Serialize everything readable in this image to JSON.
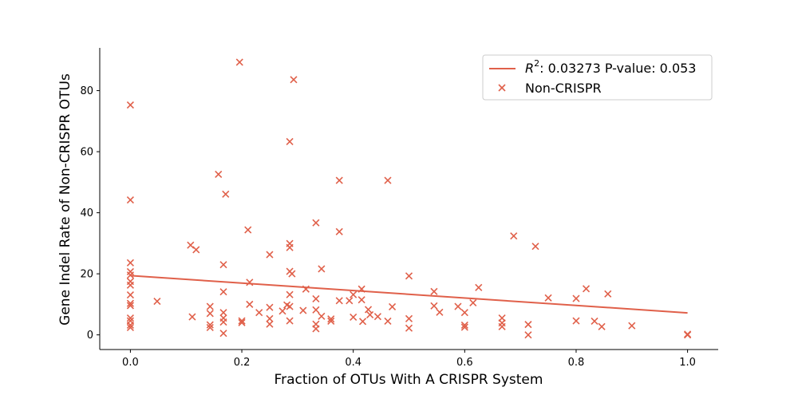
{
  "chart_data": {
    "type": "scatter",
    "title": "",
    "xlabel": "Fraction of OTUs With A CRISPR System",
    "ylabel": "Gene Indel Rate of Non-CRISPR OTUs",
    "xlim": [
      -0.055,
      1.055
    ],
    "ylim": [
      -4.8,
      94.0
    ],
    "xticks": [
      0.0,
      0.2,
      0.4,
      0.6,
      0.8,
      1.0
    ],
    "xtick_labels": [
      "0.0",
      "0.2",
      "0.4",
      "0.6",
      "0.8",
      "1.0"
    ],
    "yticks": [
      0,
      20,
      40,
      60,
      80
    ],
    "ytick_labels": [
      "0",
      "20",
      "40",
      "60",
      "80"
    ],
    "grid": false,
    "legend_position": "top-right",
    "colors": {
      "series": "#e0604a"
    },
    "fit_line": {
      "label_prefix": "R",
      "label_sup": "2",
      "label_rest": ": 0.03273 P-value: 0.053",
      "x": [
        0.0,
        1.0
      ],
      "y": [
        19.4,
        7.2
      ]
    },
    "series": [
      {
        "name": "Non-CRISPR",
        "marker": "x",
        "points": [
          [
            0.0,
            75.3
          ],
          [
            0.0,
            44.2
          ],
          [
            0.0,
            23.6
          ],
          [
            0.0,
            20.7
          ],
          [
            0.0,
            19.6
          ],
          [
            0.0,
            17.5
          ],
          [
            0.0,
            16.3
          ],
          [
            0.0,
            13.1
          ],
          [
            0.0,
            10.3
          ],
          [
            0.0,
            9.6
          ],
          [
            0.0,
            5.5
          ],
          [
            0.0,
            4.6
          ],
          [
            0.0,
            3.2
          ],
          [
            0.0,
            2.4
          ],
          [
            0.048,
            11.0
          ],
          [
            0.108,
            29.4
          ],
          [
            0.111,
            5.9
          ],
          [
            0.118,
            27.9
          ],
          [
            0.143,
            9.3
          ],
          [
            0.143,
            7.0
          ],
          [
            0.143,
            3.3
          ],
          [
            0.143,
            2.4
          ],
          [
            0.158,
            52.6
          ],
          [
            0.167,
            23.0
          ],
          [
            0.167,
            14.1
          ],
          [
            0.167,
            7.3
          ],
          [
            0.167,
            5.5
          ],
          [
            0.167,
            4.2
          ],
          [
            0.167,
            0.5
          ],
          [
            0.171,
            46.1
          ],
          [
            0.196,
            89.3
          ],
          [
            0.2,
            4.6
          ],
          [
            0.2,
            4.0
          ],
          [
            0.211,
            34.4
          ],
          [
            0.214,
            17.2
          ],
          [
            0.214,
            10.0
          ],
          [
            0.231,
            7.3
          ],
          [
            0.25,
            26.3
          ],
          [
            0.25,
            9.0
          ],
          [
            0.25,
            5.3
          ],
          [
            0.25,
            3.5
          ],
          [
            0.273,
            7.8
          ],
          [
            0.281,
            9.8
          ],
          [
            0.286,
            63.3
          ],
          [
            0.286,
            29.9
          ],
          [
            0.286,
            28.6
          ],
          [
            0.286,
            20.8
          ],
          [
            0.286,
            13.2
          ],
          [
            0.286,
            9.3
          ],
          [
            0.286,
            4.6
          ],
          [
            0.29,
            20.0
          ],
          [
            0.293,
            83.6
          ],
          [
            0.31,
            8.0
          ],
          [
            0.315,
            15.0
          ],
          [
            0.333,
            36.7
          ],
          [
            0.333,
            11.8
          ],
          [
            0.333,
            8.2
          ],
          [
            0.333,
            3.5
          ],
          [
            0.333,
            2.0
          ],
          [
            0.343,
            21.6
          ],
          [
            0.343,
            6.1
          ],
          [
            0.36,
            5.2
          ],
          [
            0.36,
            4.5
          ],
          [
            0.375,
            50.6
          ],
          [
            0.375,
            33.8
          ],
          [
            0.375,
            11.2
          ],
          [
            0.393,
            11.2
          ],
          [
            0.4,
            13.2
          ],
          [
            0.4,
            5.8
          ],
          [
            0.415,
            15.0
          ],
          [
            0.415,
            11.5
          ],
          [
            0.417,
            4.4
          ],
          [
            0.427,
            8.3
          ],
          [
            0.43,
            6.6
          ],
          [
            0.444,
            6.0
          ],
          [
            0.462,
            50.6
          ],
          [
            0.462,
            4.5
          ],
          [
            0.47,
            9.2
          ],
          [
            0.5,
            19.3
          ],
          [
            0.5,
            5.3
          ],
          [
            0.5,
            2.2
          ],
          [
            0.545,
            14.2
          ],
          [
            0.545,
            9.5
          ],
          [
            0.555,
            7.4
          ],
          [
            0.588,
            9.3
          ],
          [
            0.6,
            7.3
          ],
          [
            0.6,
            3.2
          ],
          [
            0.6,
            2.5
          ],
          [
            0.615,
            10.5
          ],
          [
            0.625,
            15.5
          ],
          [
            0.667,
            5.5
          ],
          [
            0.667,
            3.9
          ],
          [
            0.667,
            2.7
          ],
          [
            0.688,
            32.4
          ],
          [
            0.714,
            3.4
          ],
          [
            0.714,
            0.0
          ],
          [
            0.727,
            29.0
          ],
          [
            0.75,
            12.1
          ],
          [
            0.8,
            11.9
          ],
          [
            0.8,
            4.6
          ],
          [
            0.818,
            15.1
          ],
          [
            0.833,
            4.5
          ],
          [
            0.846,
            2.7
          ],
          [
            0.857,
            13.4
          ],
          [
            0.9,
            3.0
          ],
          [
            1.0,
            0.2
          ],
          [
            1.0,
            0.0
          ]
        ]
      }
    ]
  }
}
